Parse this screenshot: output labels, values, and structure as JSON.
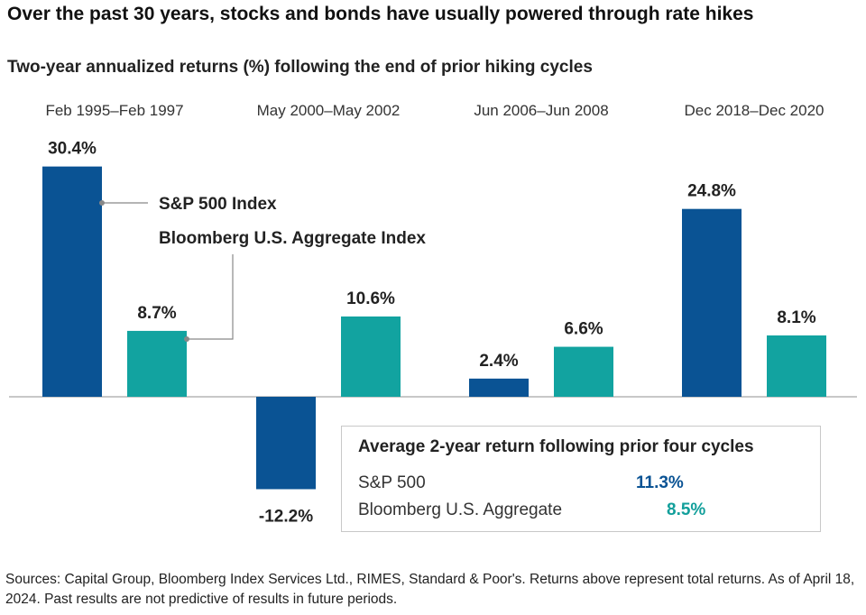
{
  "headline": "Over the past 30 years, stocks and bonds have usually powered through rate hikes",
  "colors": {
    "sp500": "#0a5394",
    "bloomberg": "#12a3a0",
    "baseline": "#b5b5b5",
    "leader": "#888888"
  },
  "chart_data": {
    "type": "bar",
    "title": "Two-year annualized returns (%) following the end of prior hiking cycles",
    "categories": [
      "Feb 1995–Feb 1997",
      "May 2000–May 2002",
      "Jun 2006–Jun 2008",
      "Dec 2018–Dec 2020"
    ],
    "series": [
      {
        "name": "S&P 500 Index",
        "values": [
          30.4,
          -12.2,
          2.4,
          24.8
        ],
        "labels": [
          "30.4%",
          "-12.2%",
          "2.4%",
          "24.8%"
        ]
      },
      {
        "name": "Bloomberg U.S. Aggregate Index",
        "values": [
          8.7,
          10.6,
          6.6,
          8.1
        ],
        "labels": [
          "8.7%",
          "10.6%",
          "6.6%",
          "8.1%"
        ]
      }
    ],
    "ylim": [
      -13,
      31
    ],
    "grid": false,
    "legend": "annotation-callouts"
  },
  "average_box": {
    "title": "Average 2-year return following prior four cycles",
    "rows": [
      {
        "label": "S&P 500",
        "value": "11.3%"
      },
      {
        "label": "Bloomberg U.S. Aggregate",
        "value": "8.5%"
      }
    ]
  },
  "footnote": "Sources: Capital Group, Bloomberg Index Services Ltd., RIMES, Standard & Poor's. Returns above represent total returns. As of April 18, 2024. Past results are not predictive of results in future periods."
}
